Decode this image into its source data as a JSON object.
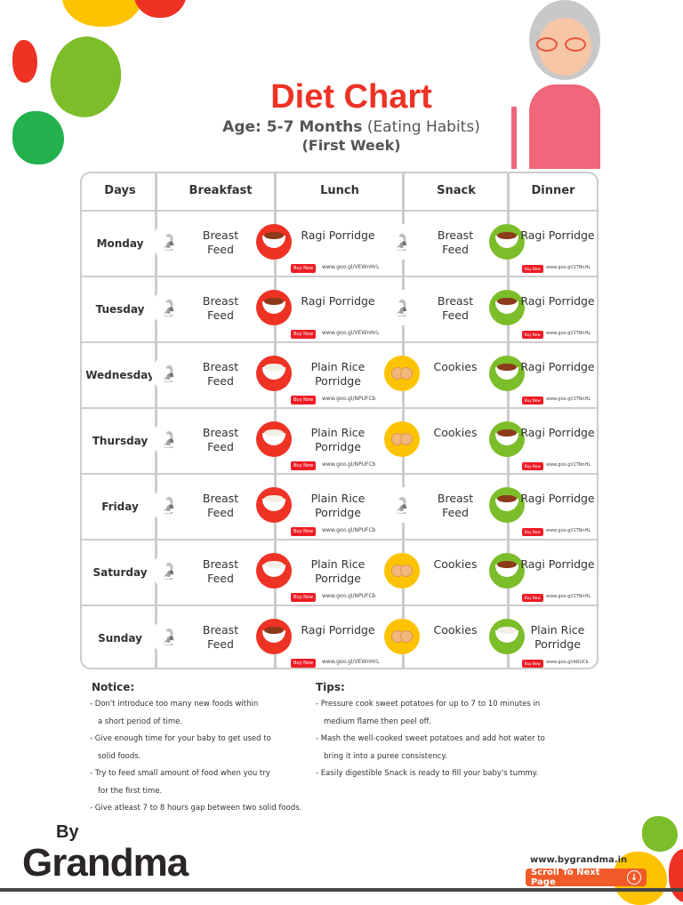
{
  "header": {
    "title": "Diet Chart",
    "age_label": "Age: 5-7 Months",
    "age_suffix": "(Eating Habits)",
    "week": "(First Week)"
  },
  "colors": {
    "breakfast": "#1e8fd6",
    "lunch": "#ee3224",
    "snack": "#fdc300",
    "dinner": "#7cbd2a",
    "title": "#ee3224"
  },
  "columns": [
    "Days",
    "Breakfast",
    "Lunch",
    "Snack",
    "Dinner"
  ],
  "buy_label": "Buy Now",
  "rows": [
    {
      "day": "Monday",
      "breakfast": "Breast Feed",
      "lunch": "Ragi Porridge",
      "lunch_link": "www.goo.gl/VEWnHrL",
      "snack": "Breast Feed",
      "dinner": "Ragi Porridge",
      "dinner_link": "www.goo.gl/1TNnHL"
    },
    {
      "day": "Tuesday",
      "breakfast": "Breast Feed",
      "lunch": "Ragi Porridge",
      "lunch_link": "www.goo.gl/VEWnHrL",
      "snack": "Breast Feed",
      "dinner": "Ragi Porridge",
      "dinner_link": "www.goo.gl/1TNnHL"
    },
    {
      "day": "Wednesday",
      "breakfast": "Breast Feed",
      "lunch": "Plain Rice Porridge",
      "lunch_link": "www.goo.gl/NPUFCb",
      "snack": "Cookies",
      "dinner": "Ragi Porridge",
      "dinner_link": "www.goo.gl/1TNnHL"
    },
    {
      "day": "Thursday",
      "breakfast": "Breast Feed",
      "lunch": "Plain Rice Porridge",
      "lunch_link": "www.goo.gl/NPUFCb",
      "snack": "Cookies",
      "dinner": "Ragi Porridge",
      "dinner_link": "www.goo.gl/1TNnHL"
    },
    {
      "day": "Friday",
      "breakfast": "Breast Feed",
      "lunch": "Plain Rice Porridge",
      "lunch_link": "www.goo.gl/NPUFCb",
      "snack": "Breast Feed",
      "dinner": "Ragi Porridge",
      "dinner_link": "www.goo.gl/1TNnHL"
    },
    {
      "day": "Saturday",
      "breakfast": "Breast Feed",
      "lunch": "Plain Rice Porridge",
      "lunch_link": "www.goo.gl/NPUFCb",
      "snack": "Cookies",
      "dinner": "Ragi Porridge",
      "dinner_link": "www.goo.gl/1TNnHL"
    },
    {
      "day": "Sunday",
      "breakfast": "Breast Feed",
      "lunch": "Ragi Porridge",
      "lunch_link": "www.goo.gl/VEWnHrL",
      "snack": "Cookies",
      "dinner": "Plain Rice Porridge",
      "dinner_link": "www.goo.gl/ARUCb"
    }
  ],
  "notice": {
    "title": "Notice:",
    "items": [
      "- Don't introduce too many new foods within",
      "a short period of time.",
      "- Give enough time for your baby to get used to",
      "solid foods.",
      "- Try to feed small amount of food when you try",
      "for the first time.",
      "- Give atleast 7 to 8 hours gap between two solid foods."
    ]
  },
  "tips": {
    "title": "Tips:",
    "items": [
      "- Pressure cook sweet potatoes for up to 7 to 10 minutes in",
      "medium flame then peel off.",
      "- Mash the well-cooked sweet potatoes and add hot water to",
      "bring it into a puree consistency.",
      "- Easily digestible Snack is ready to fill your baby's tummy."
    ]
  },
  "footer": {
    "logo_by": "By",
    "logo_text": "Grandma",
    "website": "www.bygrandma.in",
    "scroll_label": "Scroll To Next Page"
  }
}
